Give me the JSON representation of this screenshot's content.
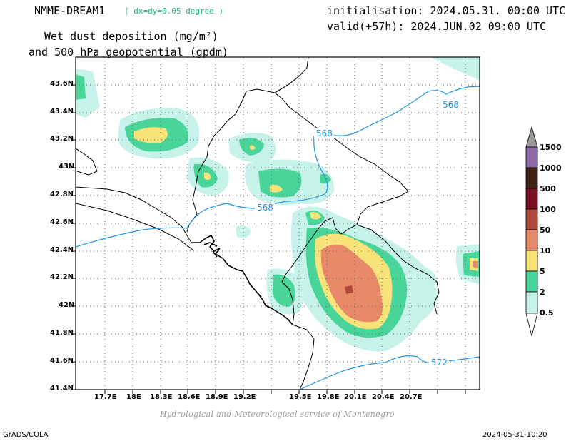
{
  "header": {
    "model": "NMME-DREAM1",
    "resolution": "( dx=dy=0.05 degree )",
    "title_line1": "Wet dust deposition (mg/m²)",
    "title_line2": "and 500 hPa geopotential (gpdm)",
    "init": "initialisation: 2024.05.31. 00:00 UTC",
    "valid": "valid(+57h): 2024.JUN.02 09:00 UTC"
  },
  "map": {
    "lat_labels": [
      "43.6N",
      "43.4N",
      "43.2N",
      "43N",
      "42.8N",
      "42.6N",
      "42.4N",
      "42.2N",
      "42N",
      "41.8N",
      "41.6N",
      "41.4N"
    ],
    "lon_labels": [
      "17.7E",
      "18E",
      "18.3E",
      "18.6E",
      "18.9E",
      "19.2E",
      "19.5E",
      "19.8E",
      "20.1E",
      "20.4E",
      "20.7E"
    ],
    "contour_labels": [
      "568",
      "568",
      "568",
      "572"
    ],
    "contour_color": "#1e96e0"
  },
  "colorbar": {
    "labels": [
      "1500",
      "1000",
      "500",
      "100",
      "50",
      "10",
      "5",
      "2",
      "0.5"
    ],
    "colors": [
      "#9a9a9a",
      "#8e6aa8",
      "#3e2214",
      "#7a0f22",
      "#b04a3a",
      "#e8896a",
      "#f7e37a",
      "#49d49a",
      "#c6f2ea"
    ]
  },
  "footer": {
    "credit": "Hydrological and Meteorological service of Montenegro",
    "left": "GrADS/COLA",
    "right": "2024-05-31-10:20"
  }
}
